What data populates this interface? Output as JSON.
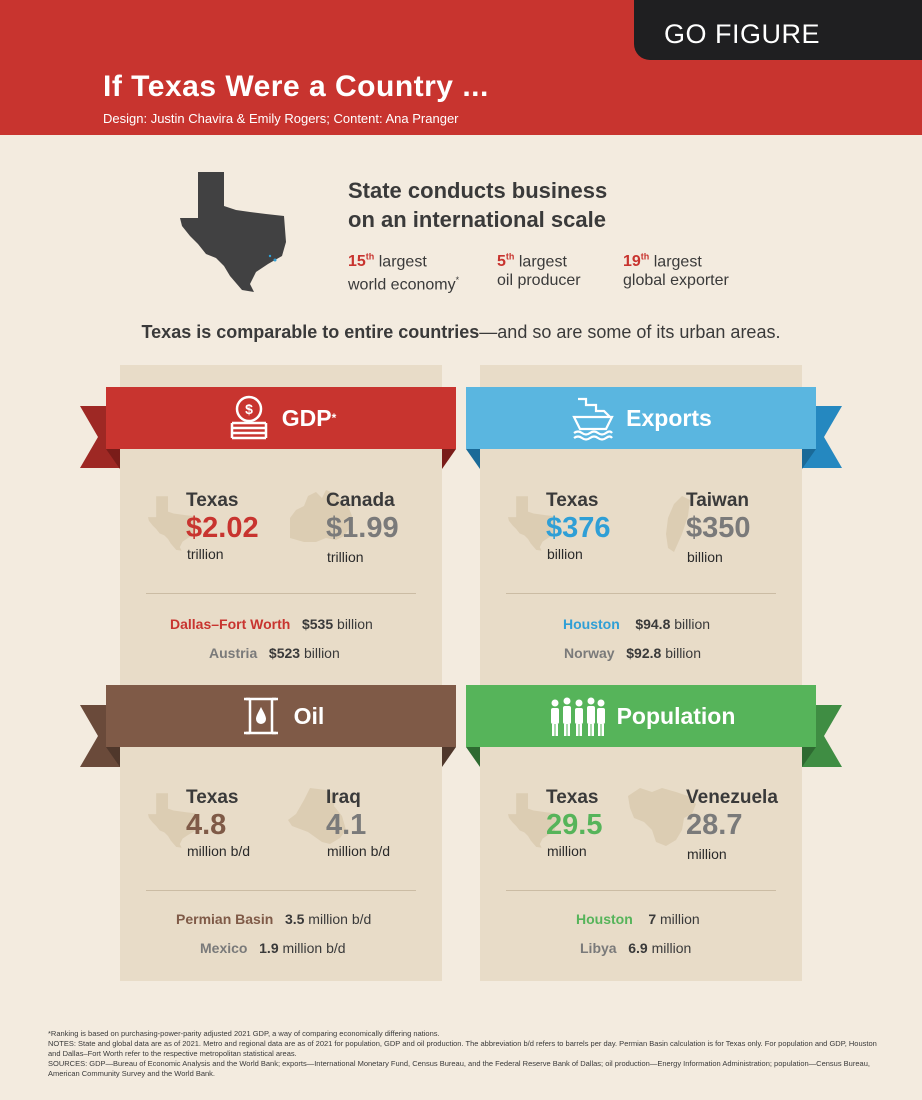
{
  "header": {
    "badge": "GO FIGURE",
    "title": "If Texas Were a Country ...",
    "credits": "Design: Justin Chavira & Emily Rogers; Content: Ana Pranger"
  },
  "intro": {
    "headline_line1": "State conducts business",
    "headline_line2": "on an international scale",
    "ranks": [
      {
        "num": "15",
        "suffix": "th",
        "line1": "largest",
        "line2": "world economy",
        "mark": "*"
      },
      {
        "num": "5",
        "suffix": "th",
        "line1": "largest",
        "line2": "oil producer",
        "mark": ""
      },
      {
        "num": "19",
        "suffix": "th",
        "line1": "largest",
        "line2": "global exporter",
        "mark": ""
      }
    ],
    "subhead_bold": "Texas is comparable to entire countries",
    "subhead_rest": "—and so are some of its urban areas."
  },
  "colors": {
    "gdp": "#c8342f",
    "exports": "#2f9fd6",
    "oil": "#7f5a47",
    "population": "#56b45a",
    "gray": "#7a7a7a"
  },
  "panels": {
    "gdp": {
      "icon": "coins-icon",
      "title": "GDP",
      "title_mark": "*",
      "left": {
        "name": "Texas",
        "value": "$2.02",
        "unit": "trillion"
      },
      "right": {
        "name": "Canada",
        "value": "$1.99",
        "unit": "trillion"
      },
      "rows": [
        {
          "label": "Dallas–Fort Worth",
          "value": "$535",
          "unit": "billion"
        },
        {
          "label": "Austria",
          "value": "$523",
          "unit": "billion"
        }
      ]
    },
    "exports": {
      "icon": "ship-icon",
      "title": "Exports",
      "left": {
        "name": "Texas",
        "value": "$376",
        "unit": "billion"
      },
      "right": {
        "name": "Taiwan",
        "value": "$350",
        "unit": "billion"
      },
      "rows": [
        {
          "label": "Houston",
          "value": "$94.8",
          "unit": "billion"
        },
        {
          "label": "Norway",
          "value": "$92.8",
          "unit": "billion"
        }
      ]
    },
    "oil": {
      "icon": "oil-barrel-icon",
      "title": "Oil",
      "left": {
        "name": "Texas",
        "value": "4.8",
        "unit": "million b/d"
      },
      "right": {
        "name": "Iraq",
        "value": "4.1",
        "unit": "million b/d"
      },
      "rows": [
        {
          "label": "Permian Basin",
          "value": "3.5",
          "unit": "million b/d"
        },
        {
          "label": "Mexico",
          "value": "1.9",
          "unit": "million b/d"
        }
      ]
    },
    "population": {
      "icon": "people-icon",
      "title": "Population",
      "left": {
        "name": "Texas",
        "value": "29.5",
        "unit": "million"
      },
      "right": {
        "name": "Venezuela",
        "value": "28.7",
        "unit": "million"
      },
      "rows": [
        {
          "label": "Houston",
          "value": "7",
          "unit": "million"
        },
        {
          "label": "Libya",
          "value": "6.9",
          "unit": "million"
        }
      ]
    }
  },
  "footnotes": [
    "*Ranking is based on purchasing-power-parity adjusted 2021 GDP, a way of comparing economically differing nations.",
    "NOTES: State and global data are as of 2021. Metro and regional data are as of 2021 for population, GDP and oil production. The abbreviation b/d refers to barrels per day. Permian Basin calculation is for Texas only. For population and GDP, Houston and Dallas–Fort Worth refer to the respective metropolitan statistical areas.",
    "SOURCES: GDP—Bureau of Economic Analysis and the World Bank; exports—International Monetary Fund, Census Bureau, and the Federal Reserve Bank of Dallas; oil production—Energy Information Administration; population—Census Bureau, American Community Survey and the World Bank."
  ]
}
